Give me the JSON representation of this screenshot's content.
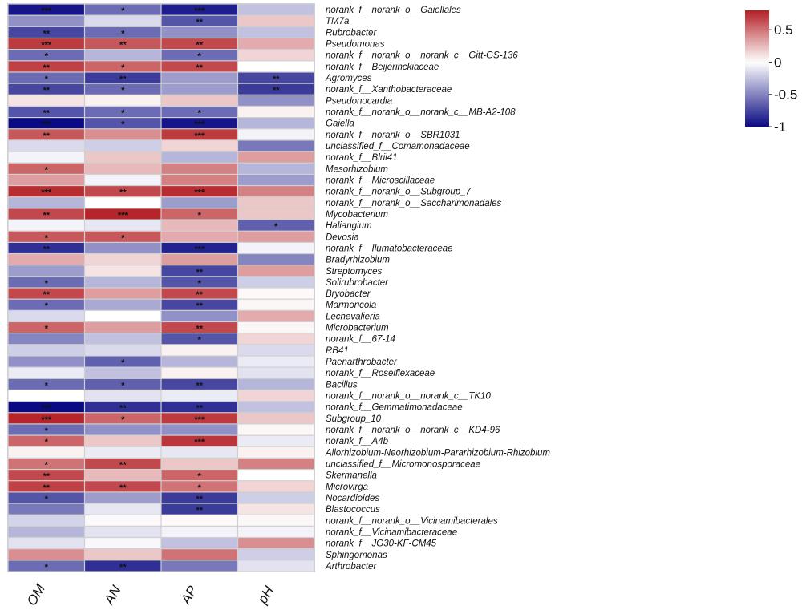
{
  "chart_data": {
    "type": "heatmap",
    "columns": [
      "OM",
      "AN",
      "AP",
      "pH"
    ],
    "rows": [
      {
        "label": "norank_f__norank_o__Gaiellales",
        "values": [
          -0.95,
          -0.6,
          -0.92,
          -0.25
        ],
        "sig": [
          "***",
          "*",
          "***",
          ""
        ]
      },
      {
        "label": "TM7a",
        "values": [
          -0.45,
          -0.15,
          -0.7,
          0.2
        ],
        "sig": [
          "",
          "",
          "**",
          ""
        ]
      },
      {
        "label": "Rubrobacter",
        "values": [
          -0.75,
          -0.6,
          -0.45,
          -0.25
        ],
        "sig": [
          "**",
          "*",
          "",
          ""
        ]
      },
      {
        "label": "Pseudomonas",
        "values": [
          0.7,
          0.6,
          0.65,
          0.3
        ],
        "sig": [
          "***",
          "**",
          "**",
          ""
        ]
      },
      {
        "label": "norank_f__norank_o__norank_c__Gitt-GS-136",
        "values": [
          -0.6,
          -0.3,
          -0.6,
          0.15
        ],
        "sig": [
          "*",
          "",
          "*",
          ""
        ]
      },
      {
        "label": "norank_f__Beijerinckiaceae",
        "values": [
          0.68,
          0.55,
          0.65,
          0.0
        ],
        "sig": [
          "**",
          "*",
          "**",
          ""
        ]
      },
      {
        "label": "Agromyces",
        "values": [
          -0.6,
          -0.8,
          -0.4,
          -0.75
        ],
        "sig": [
          "*",
          "**",
          "",
          "**"
        ]
      },
      {
        "label": "norank_f__Xanthobacteraceae",
        "values": [
          -0.75,
          -0.6,
          -0.4,
          -0.8
        ],
        "sig": [
          "**",
          "*",
          "",
          "**"
        ]
      },
      {
        "label": "Pseudonocardia",
        "values": [
          0.1,
          0.05,
          0.2,
          -0.45
        ],
        "sig": [
          "",
          "",
          "",
          ""
        ]
      },
      {
        "label": "norank_f__norank_o__norank_c__MB-A2-108",
        "values": [
          -0.7,
          -0.6,
          -0.6,
          0.05
        ],
        "sig": [
          "**",
          "*",
          "*",
          ""
        ]
      },
      {
        "label": "Gaiella",
        "values": [
          -1.0,
          -0.7,
          -0.95,
          -0.3
        ],
        "sig": [
          "***",
          "*",
          "***",
          ""
        ]
      },
      {
        "label": "norank_f__norank_o__SBR1031",
        "values": [
          0.6,
          0.4,
          0.7,
          -0.05
        ],
        "sig": [
          "**",
          "",
          "***",
          ""
        ]
      },
      {
        "label": "unclassified_f__Comamonadaceae",
        "values": [
          -0.15,
          -0.2,
          0.15,
          -0.55
        ],
        "sig": [
          "",
          "",
          "",
          ""
        ]
      },
      {
        "label": "norank_f__Blrii41",
        "values": [
          -0.05,
          0.2,
          -0.3,
          0.35
        ],
        "sig": [
          "",
          "",
          "",
          ""
        ]
      },
      {
        "label": "Mesorhizobium",
        "values": [
          0.55,
          0.25,
          0.45,
          -0.3
        ],
        "sig": [
          "*",
          "",
          "",
          ""
        ]
      },
      {
        "label": "norank_f__Microscillaceae",
        "values": [
          0.35,
          -0.05,
          0.45,
          -0.4
        ],
        "sig": [
          "",
          "",
          "",
          ""
        ]
      },
      {
        "label": "norank_f__norank_o__Subgroup_7",
        "values": [
          0.75,
          0.65,
          0.75,
          0.45
        ],
        "sig": [
          "***",
          "**",
          "***",
          ""
        ]
      },
      {
        "label": "norank_f__norank_o__Saccharimonadales",
        "values": [
          -0.3,
          0.0,
          -0.4,
          0.2
        ],
        "sig": [
          "",
          "",
          "",
          ""
        ]
      },
      {
        "label": "Mycobacterium",
        "values": [
          0.65,
          0.78,
          0.55,
          0.2
        ],
        "sig": [
          "**",
          "***",
          "*",
          ""
        ]
      },
      {
        "label": "Haliangium",
        "values": [
          -0.05,
          -0.1,
          0.25,
          -0.65
        ],
        "sig": [
          "",
          "",
          "",
          "*"
        ]
      },
      {
        "label": "Devosia",
        "values": [
          0.6,
          0.6,
          0.3,
          0.35
        ],
        "sig": [
          "*",
          "*",
          "",
          ""
        ]
      },
      {
        "label": "norank_f__Ilumatobacteraceae",
        "values": [
          -0.85,
          -0.45,
          -0.9,
          -0.05
        ],
        "sig": [
          "**",
          "",
          "***",
          ""
        ]
      },
      {
        "label": "Bradyrhizobium",
        "values": [
          0.3,
          0.15,
          0.35,
          -0.5
        ],
        "sig": [
          "",
          "",
          "",
          ""
        ]
      },
      {
        "label": "Streptomyces",
        "values": [
          -0.4,
          0.1,
          -0.75,
          0.35
        ],
        "sig": [
          "",
          "",
          "**",
          ""
        ]
      },
      {
        "label": "Solirubrobacter",
        "values": [
          -0.6,
          -0.3,
          -0.7,
          -0.2
        ],
        "sig": [
          "*",
          "",
          "*",
          ""
        ]
      },
      {
        "label": "Bryobacter",
        "values": [
          0.65,
          0.35,
          0.65,
          0.02
        ],
        "sig": [
          "**",
          "",
          "**",
          ""
        ]
      },
      {
        "label": "Marmoricola",
        "values": [
          -0.6,
          -0.35,
          -0.75,
          0.03
        ],
        "sig": [
          "*",
          "",
          "**",
          ""
        ]
      },
      {
        "label": "Lechevalieria",
        "values": [
          -0.15,
          0.0,
          -0.45,
          0.3
        ],
        "sig": [
          "",
          "",
          "",
          ""
        ]
      },
      {
        "label": "Microbacterium",
        "values": [
          0.55,
          0.35,
          0.65,
          0.03
        ],
        "sig": [
          "*",
          "",
          "**",
          ""
        ]
      },
      {
        "label": "norank_f__67-14",
        "values": [
          -0.5,
          -0.25,
          -0.7,
          0.15
        ],
        "sig": [
          "",
          "",
          "*",
          ""
        ]
      },
      {
        "label": "RB41",
        "values": [
          -0.2,
          -0.15,
          0.05,
          -0.15
        ],
        "sig": [
          "",
          "",
          "",
          ""
        ]
      },
      {
        "label": "Paenarthrobacter",
        "values": [
          -0.45,
          -0.65,
          -0.3,
          -0.08
        ],
        "sig": [
          "",
          "*",
          "",
          ""
        ]
      },
      {
        "label": "norank_f__Roseiflexaceae",
        "values": [
          -0.08,
          -0.25,
          0.05,
          -0.12
        ],
        "sig": [
          "",
          "",
          "",
          ""
        ]
      },
      {
        "label": "Bacillus",
        "values": [
          -0.6,
          -0.65,
          -0.75,
          -0.3
        ],
        "sig": [
          "*",
          "*",
          "**",
          ""
        ]
      },
      {
        "label": "norank_f__norank_o__norank_c__TK10",
        "values": [
          0.0,
          -0.12,
          -0.08,
          0.15
        ],
        "sig": [
          "",
          "",
          "",
          ""
        ]
      },
      {
        "label": "norank_f__Gemmatimonadaceae",
        "values": [
          -1.0,
          -0.85,
          -0.85,
          -0.25
        ],
        "sig": [
          "***",
          "**",
          "**",
          ""
        ]
      },
      {
        "label": "Subgroup_10",
        "values": [
          0.78,
          0.55,
          0.7,
          0.2
        ],
        "sig": [
          "***",
          "*",
          "***",
          ""
        ]
      },
      {
        "label": "norank_f__norank_o__norank_c__KD4-96",
        "values": [
          -0.6,
          -0.45,
          -0.45,
          0.03
        ],
        "sig": [
          "*",
          "",
          "",
          ""
        ]
      },
      {
        "label": "norank_f__A4b",
        "values": [
          0.55,
          0.2,
          0.72,
          -0.08
        ],
        "sig": [
          "*",
          "",
          "***",
          ""
        ]
      },
      {
        "label": "Allorhizobium-Neorhizobium-Pararhizobium-Rhizobium",
        "values": [
          0.05,
          -0.08,
          -0.1,
          0.05
        ],
        "sig": [
          "",
          "",
          "",
          ""
        ]
      },
      {
        "label": "unclassified_f__Micromonosporaceae",
        "values": [
          0.5,
          0.65,
          0.2,
          0.45
        ],
        "sig": [
          "*",
          "**",
          "",
          ""
        ]
      },
      {
        "label": "Skermanella",
        "values": [
          0.65,
          0.25,
          0.55,
          0.0
        ],
        "sig": [
          "**",
          "",
          "*",
          ""
        ]
      },
      {
        "label": "Microvirga",
        "values": [
          0.68,
          0.65,
          0.5,
          0.15
        ],
        "sig": [
          "**",
          "**",
          "*",
          ""
        ]
      },
      {
        "label": "Nocardioides",
        "values": [
          -0.7,
          -0.4,
          -0.8,
          -0.2
        ],
        "sig": [
          "*",
          "",
          "**",
          ""
        ]
      },
      {
        "label": "Blastococcus",
        "values": [
          -0.55,
          -0.1,
          -0.8,
          0.1
        ],
        "sig": [
          "",
          "",
          "**",
          ""
        ]
      },
      {
        "label": "norank_f__norank_o__Vicinamibacterales",
        "values": [
          -0.18,
          0.02,
          0.02,
          0.03
        ],
        "sig": [
          "",
          "",
          "",
          ""
        ]
      },
      {
        "label": "norank_f__Vicinamibacteraceae",
        "values": [
          -0.3,
          -0.12,
          -0.05,
          -0.05
        ],
        "sig": [
          "",
          "",
          "",
          ""
        ]
      },
      {
        "label": "norank_f__JG30-KF-CM45",
        "values": [
          -0.12,
          -0.03,
          -0.25,
          0.4
        ],
        "sig": [
          "",
          "",
          "",
          ""
        ]
      },
      {
        "label": "Sphingomonas",
        "values": [
          0.4,
          0.2,
          0.5,
          -0.2
        ],
        "sig": [
          "",
          "",
          "",
          ""
        ]
      },
      {
        "label": "Arthrobacter",
        "values": [
          -0.6,
          -0.85,
          -0.55,
          -0.12
        ],
        "sig": [
          "*",
          "**",
          "",
          ""
        ]
      }
    ],
    "color_scale": {
      "min": -1,
      "max": 0.8,
      "low": "#0a0a82",
      "mid": "#ffffff",
      "high": "#b31f24"
    },
    "colorbar_ticks": [
      {
        "value": 0.5,
        "label": "0.5"
      },
      {
        "value": 0,
        "label": "0"
      },
      {
        "value": -0.5,
        "label": "-0.5"
      },
      {
        "value": -1,
        "label": "-1"
      }
    ],
    "legend": "top-right"
  }
}
